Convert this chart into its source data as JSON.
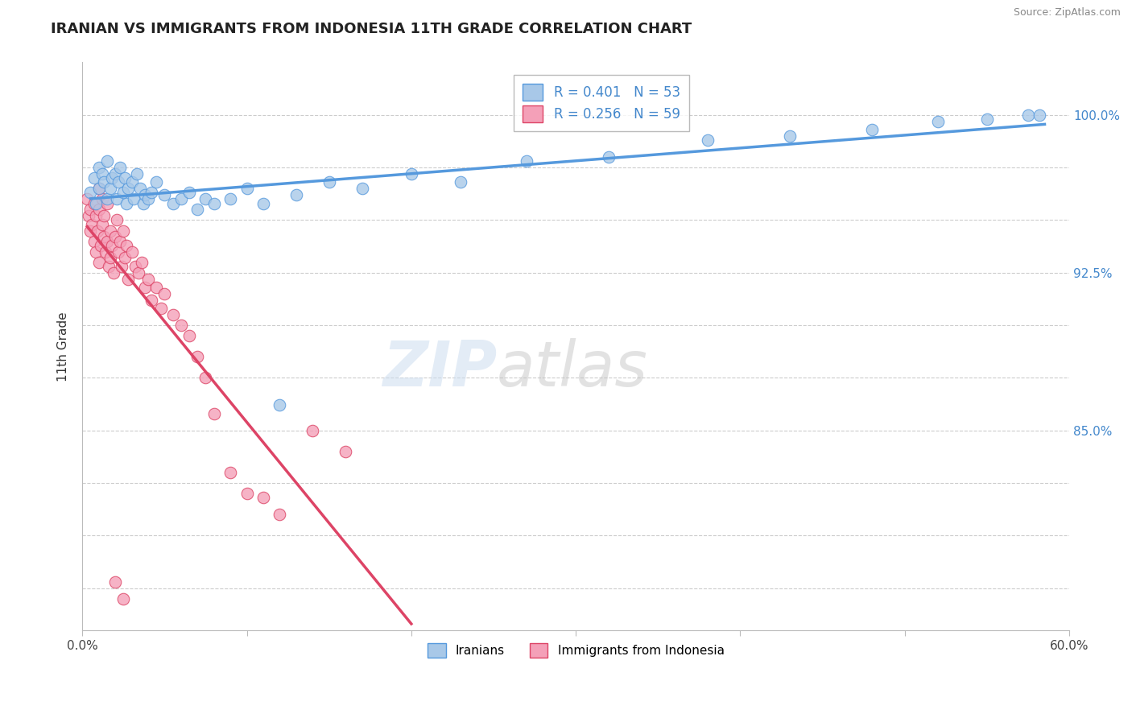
{
  "title": "IRANIAN VS IMMIGRANTS FROM INDONESIA 11TH GRADE CORRELATION CHART",
  "source": "Source: ZipAtlas.com",
  "ylabel": "11th Grade",
  "xmin": 0.0,
  "xmax": 0.6,
  "ymin": 0.755,
  "ymax": 1.025,
  "yticks": [
    0.775,
    0.8,
    0.825,
    0.85,
    0.875,
    0.9,
    0.925,
    0.95,
    0.975,
    1.0
  ],
  "ytick_labels": [
    "",
    "",
    "",
    "85.0%",
    "",
    "",
    "92.5%",
    "",
    "",
    "100.0%"
  ],
  "ytick_labels_show": [
    false,
    false,
    false,
    true,
    false,
    false,
    true,
    false,
    false,
    true
  ],
  "xticks": [
    0.0,
    0.1,
    0.2,
    0.3,
    0.4,
    0.5,
    0.6
  ],
  "xtick_labels": [
    "0.0%",
    "",
    "",
    "",
    "",
    "",
    "60.0%"
  ],
  "legend_r1": "R = 0.401",
  "legend_n1": "N = 53",
  "legend_r2": "R = 0.256",
  "legend_n2": "N = 59",
  "color_iranian": "#a8c8e8",
  "color_indonesia": "#f4a0b8",
  "color_line_iranian": "#5599dd",
  "color_line_indonesia": "#dd4466",
  "iranians_x": [
    0.005,
    0.007,
    0.008,
    0.01,
    0.01,
    0.012,
    0.013,
    0.015,
    0.015,
    0.017,
    0.018,
    0.02,
    0.021,
    0.022,
    0.023,
    0.025,
    0.026,
    0.027,
    0.028,
    0.03,
    0.031,
    0.033,
    0.035,
    0.037,
    0.038,
    0.04,
    0.042,
    0.045,
    0.05,
    0.055,
    0.06,
    0.065,
    0.07,
    0.075,
    0.08,
    0.09,
    0.1,
    0.11,
    0.12,
    0.13,
    0.15,
    0.17,
    0.2,
    0.23,
    0.27,
    0.32,
    0.38,
    0.43,
    0.48,
    0.52,
    0.55,
    0.575,
    0.582
  ],
  "iranians_y": [
    0.963,
    0.97,
    0.958,
    0.975,
    0.965,
    0.972,
    0.968,
    0.96,
    0.978,
    0.965,
    0.97,
    0.972,
    0.96,
    0.968,
    0.975,
    0.963,
    0.97,
    0.958,
    0.965,
    0.968,
    0.96,
    0.972,
    0.965,
    0.958,
    0.962,
    0.96,
    0.963,
    0.968,
    0.962,
    0.958,
    0.96,
    0.963,
    0.955,
    0.96,
    0.958,
    0.96,
    0.965,
    0.958,
    0.862,
    0.962,
    0.968,
    0.965,
    0.972,
    0.968,
    0.978,
    0.98,
    0.988,
    0.99,
    0.993,
    0.997,
    0.998,
    1.0,
    1.0
  ],
  "indonesia_x": [
    0.003,
    0.004,
    0.005,
    0.005,
    0.006,
    0.007,
    0.007,
    0.008,
    0.008,
    0.009,
    0.01,
    0.01,
    0.01,
    0.011,
    0.012,
    0.012,
    0.013,
    0.013,
    0.014,
    0.015,
    0.015,
    0.016,
    0.017,
    0.017,
    0.018,
    0.019,
    0.02,
    0.021,
    0.022,
    0.023,
    0.024,
    0.025,
    0.026,
    0.027,
    0.028,
    0.03,
    0.032,
    0.034,
    0.036,
    0.038,
    0.04,
    0.042,
    0.045,
    0.048,
    0.05,
    0.055,
    0.06,
    0.065,
    0.07,
    0.075,
    0.08,
    0.09,
    0.1,
    0.11,
    0.12,
    0.14,
    0.16,
    0.02,
    0.025
  ],
  "indonesia_y": [
    0.96,
    0.952,
    0.945,
    0.955,
    0.948,
    0.94,
    0.958,
    0.935,
    0.952,
    0.945,
    0.93,
    0.955,
    0.965,
    0.938,
    0.948,
    0.96,
    0.942,
    0.952,
    0.935,
    0.94,
    0.958,
    0.928,
    0.945,
    0.932,
    0.938,
    0.925,
    0.942,
    0.95,
    0.935,
    0.94,
    0.928,
    0.945,
    0.932,
    0.938,
    0.922,
    0.935,
    0.928,
    0.925,
    0.93,
    0.918,
    0.922,
    0.912,
    0.918,
    0.908,
    0.915,
    0.905,
    0.9,
    0.895,
    0.885,
    0.875,
    0.858,
    0.83,
    0.82,
    0.818,
    0.81,
    0.85,
    0.84,
    0.778,
    0.77
  ]
}
